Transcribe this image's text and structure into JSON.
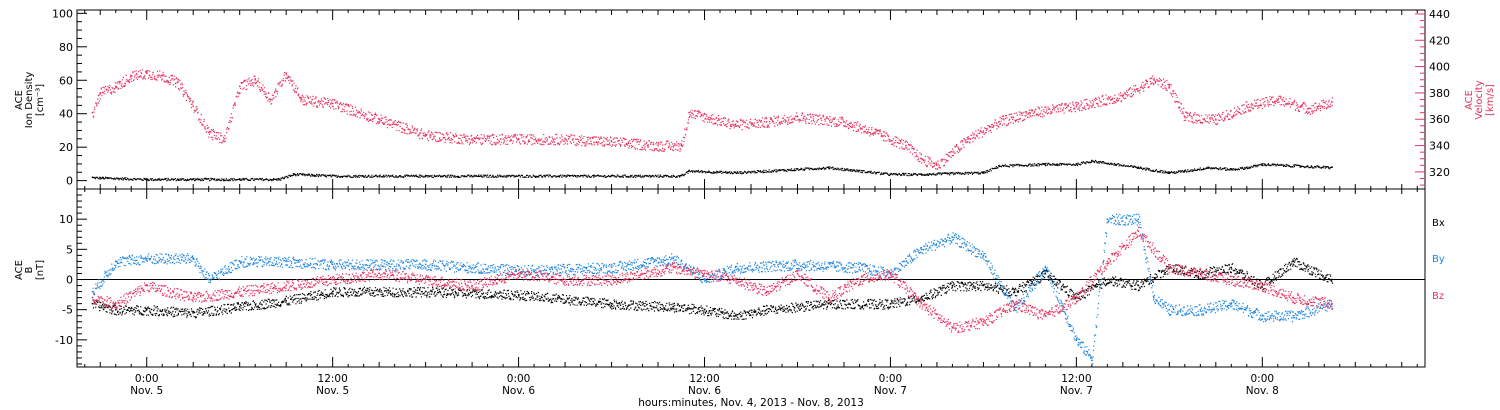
{
  "colors": {
    "black": "#000000",
    "pink": "#e8335f",
    "blue": "#1e86e0"
  },
  "chart_data": [
    {
      "type": "scatter",
      "panel": "top",
      "ylabel_lines": [
        "ACE",
        "Ion Density",
        "[cm⁻³]"
      ],
      "ylabel_right_lines": [
        "ACE",
        "Velocity",
        "[km/s]"
      ],
      "ylim": [
        -5,
        102
      ],
      "yticks": [
        "0",
        "20",
        "40",
        "60",
        "80",
        "100"
      ],
      "ylim_right": [
        307,
        443
      ],
      "yticks_right": [
        "320",
        "340",
        "360",
        "380",
        "400",
        "420",
        "440"
      ],
      "series": [
        {
          "axis": "left",
          "color": "#000000",
          "x_hours": [
            -3.5,
            0,
            3,
            6,
            8.5,
            9.5,
            12,
            18,
            24,
            30,
            34.5,
            35,
            38,
            42,
            44,
            46,
            48,
            50,
            54,
            55,
            58,
            60,
            61,
            64,
            66,
            67,
            68.5,
            70,
            71,
            72,
            76.5
          ],
          "values": [
            2,
            1,
            1,
            1,
            1,
            4,
            3,
            3,
            3,
            3,
            3,
            6,
            5,
            7,
            8,
            6,
            4,
            4,
            5,
            9,
            10,
            10,
            12,
            8,
            5,
            6,
            8,
            7,
            8,
            10,
            8
          ]
        },
        {
          "axis": "right",
          "color": "#e8335f",
          "x_hours": [
            -3.5,
            -3,
            -2,
            -1,
            0,
            1,
            2,
            3,
            4,
            5,
            6,
            7,
            8,
            9,
            10,
            12,
            15,
            18,
            21,
            24,
            27,
            30,
            33,
            34.5,
            35,
            38,
            40,
            42,
            45,
            47,
            49,
            50,
            51,
            53,
            55,
            57,
            60,
            63,
            65,
            66,
            67,
            69,
            71,
            73,
            75,
            76.5
          ],
          "values": [
            365,
            380,
            385,
            393,
            395,
            393,
            388,
            370,
            350,
            345,
            385,
            390,
            375,
            395,
            375,
            372,
            360,
            348,
            345,
            345,
            345,
            343,
            340,
            340,
            365,
            356,
            358,
            362,
            358,
            350,
            340,
            330,
            325,
            345,
            358,
            365,
            370,
            378,
            390,
            385,
            362,
            360,
            370,
            375,
            368,
            373
          ]
        }
      ]
    },
    {
      "type": "scatter",
      "panel": "bottom",
      "ylabel_lines": [
        "ACE",
        "B",
        "[nT]"
      ],
      "ylim": [
        -14.5,
        15
      ],
      "yticks": [
        "-10",
        "-5",
        "0",
        "5",
        "10"
      ],
      "zero_line": true,
      "series": [
        {
          "name": "Bx",
          "color": "#000000",
          "x_hours": [
            -3.5,
            -2,
            0,
            3,
            6,
            9,
            12,
            18,
            24,
            30,
            34,
            36,
            38,
            40,
            44,
            48,
            50,
            52,
            54,
            56,
            58,
            60,
            62,
            64,
            66,
            68,
            70,
            72,
            74,
            76.5
          ],
          "values": [
            -4,
            -5,
            -5,
            -5.5,
            -4.5,
            -3.5,
            -2,
            -2,
            -2.5,
            -4,
            -4.5,
            -5,
            -6,
            -5,
            -4,
            -4,
            -3,
            -1,
            -1,
            -2,
            1,
            -3,
            0,
            -1,
            2,
            1,
            2,
            -1,
            3,
            0
          ]
        },
        {
          "name": "By",
          "color": "#1e86e0",
          "x_hours": [
            -3.5,
            -2,
            0,
            3,
            4,
            6,
            9,
            12,
            18,
            24,
            30,
            34,
            36,
            38,
            42,
            46,
            48,
            50,
            52,
            54,
            56,
            58,
            60,
            61,
            62,
            64,
            65,
            66,
            68,
            70,
            72,
            74,
            76.5
          ],
          "values": [
            -2,
            3,
            3.5,
            3.5,
            0,
            3,
            3,
            2.5,
            2.5,
            1.5,
            2,
            3.5,
            0,
            2,
            2.5,
            2,
            1,
            5,
            7,
            4,
            -5,
            2,
            -10,
            -13,
            10,
            10,
            -3,
            -5,
            -5,
            -4,
            -6,
            -6,
            -4
          ]
        },
        {
          "name": "Bz",
          "color": "#e8335f",
          "x_hours": [
            -3.5,
            -2,
            0,
            3,
            6,
            9,
            12,
            15,
            18,
            21,
            24,
            27,
            30,
            34,
            36,
            38,
            40,
            42,
            44,
            46,
            48,
            50,
            52,
            54,
            56,
            58,
            60,
            62,
            64,
            66,
            68,
            70,
            72,
            74,
            76.5
          ],
          "values": [
            -3,
            -4,
            -1,
            -3,
            -2,
            -1,
            0,
            1,
            0,
            -1,
            1,
            0,
            0,
            2,
            1,
            0,
            -2,
            1,
            -3,
            0,
            1,
            -4,
            -8,
            -7,
            -4,
            -6,
            -3,
            3,
            8,
            2,
            1,
            0,
            -1,
            -3,
            -4
          ]
        }
      ]
    }
  ],
  "legend": {
    "bx": "Bx",
    "by": "By",
    "bz": "Bz"
  },
  "xaxis": {
    "start_hour": -4.5,
    "end_hour": 82.5,
    "ticks": [
      {
        "hour": 0,
        "time": "0:00",
        "date": "Nov. 5"
      },
      {
        "hour": 12,
        "time": "12:00",
        "date": "Nov. 5"
      },
      {
        "hour": 24,
        "time": "0:00",
        "date": "Nov. 6"
      },
      {
        "hour": 36,
        "time": "12:00",
        "date": "Nov. 6"
      },
      {
        "hour": 48,
        "time": "0:00",
        "date": "Nov. 7"
      },
      {
        "hour": 60,
        "time": "12:00",
        "date": "Nov. 7"
      },
      {
        "hour": 72,
        "time": "0:00",
        "date": "Nov. 8"
      }
    ],
    "title": "hours:minutes, Nov.  4, 2013 - Nov.  8, 2013"
  }
}
